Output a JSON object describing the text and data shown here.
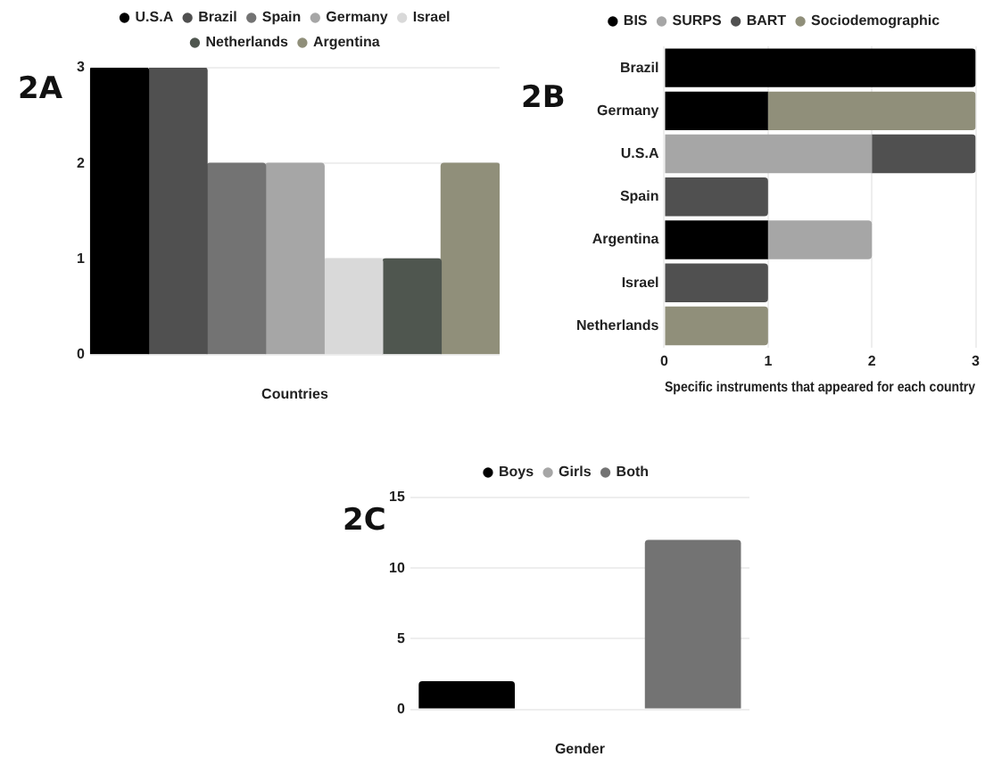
{
  "chart_data": [
    {
      "type": "bar",
      "title": "2A",
      "xlabel": "Countries",
      "categories": [
        null
      ],
      "series": [
        {
          "name": "U.S.A",
          "color": "#000000",
          "values": [
            3
          ]
        },
        {
          "name": "Brazil",
          "color": "#505050",
          "values": [
            3
          ]
        },
        {
          "name": "Spain",
          "color": "#737373",
          "values": [
            2
          ]
        },
        {
          "name": "Germany",
          "color": "#a6a6a6",
          "values": [
            2
          ]
        },
        {
          "name": "Israel",
          "color": "#d9d9d9",
          "values": [
            1
          ]
        },
        {
          "name": "Netherlands",
          "color": "#4f564f",
          "values": [
            1
          ]
        },
        {
          "name": "Argentina",
          "color": "#908f7a",
          "values": [
            2
          ]
        }
      ],
      "ylim": [
        0,
        3
      ],
      "yticks": [
        0,
        1,
        2,
        3
      ],
      "grid": "y",
      "legend": "top"
    },
    {
      "type": "bar",
      "title": "2B",
      "xlabel": "Specific instruments that appeared for each country",
      "orientation": "horizontal",
      "stacked": true,
      "categories": [
        "Brazil",
        "Germany",
        "U.S.A",
        "Spain",
        "Argentina",
        "Israel",
        "Netherlands"
      ],
      "series": [
        {
          "name": "BIS",
          "color": "#000000",
          "values": [
            3,
            1,
            0,
            0,
            1,
            0,
            0
          ]
        },
        {
          "name": "SURPS",
          "color": "#a6a6a6",
          "values": [
            0,
            0,
            2,
            0,
            1,
            0,
            0
          ]
        },
        {
          "name": "BART",
          "color": "#505050",
          "values": [
            0,
            0,
            1,
            1,
            0,
            1,
            0
          ]
        },
        {
          "name": "Sociodemographic",
          "color": "#908f7a",
          "values": [
            0,
            2,
            0,
            0,
            0,
            0,
            1
          ]
        }
      ],
      "xlim": [
        0,
        3
      ],
      "xticks": [
        0,
        1,
        2,
        3
      ],
      "grid": "x",
      "legend": "top"
    },
    {
      "type": "bar",
      "title": "2C",
      "xlabel": "Gender",
      "categories": [
        null
      ],
      "series": [
        {
          "name": "Boys",
          "color": "#000000",
          "values": [
            2
          ]
        },
        {
          "name": "Girls",
          "color": "#a6a6a6",
          "values": [
            0
          ]
        },
        {
          "name": "Both",
          "color": "#737373",
          "values": [
            12
          ]
        }
      ],
      "ylim": [
        0,
        15
      ],
      "yticks": [
        0,
        5,
        10,
        15
      ],
      "grid": "y",
      "legend": "top"
    }
  ]
}
